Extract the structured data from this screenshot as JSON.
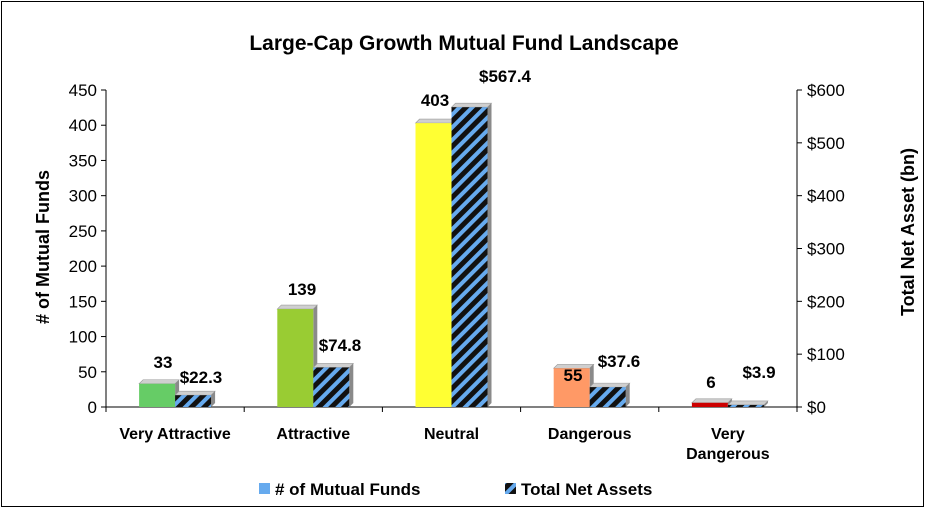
{
  "chart_data": {
    "type": "bar",
    "title": "Large-Cap Growth Mutual Fund Landscape",
    "categories": [
      "Very Attractive",
      "Attractive",
      "Neutral",
      "Dangerous",
      "Very Dangerous"
    ],
    "category_lines": [
      [
        "Very Attractive"
      ],
      [
        "Attractive"
      ],
      [
        "Neutral"
      ],
      [
        "Dangerous"
      ],
      [
        "Very",
        "Dangerous"
      ]
    ],
    "ylabel": "# of Mutual Funds",
    "y2label": "Total Net Asset (bn)",
    "ylim": [
      0,
      450
    ],
    "yticks": [
      0,
      50,
      100,
      150,
      200,
      250,
      300,
      350,
      400,
      450
    ],
    "y2lim": [
      0,
      600
    ],
    "y2ticks": [
      0,
      100,
      200,
      300,
      400,
      500,
      600
    ],
    "y2tick_labels": [
      "$0",
      "$100",
      "$200",
      "$300",
      "$400",
      "$500",
      "$600"
    ],
    "grid": false,
    "legend_position": "bottom",
    "series": [
      {
        "name": "# of Mutual Funds",
        "axis": "left",
        "values": [
          33,
          139,
          403,
          55,
          6
        ],
        "labels": [
          "33",
          "139",
          "403",
          "55",
          "6"
        ],
        "colors": [
          "#66cc66",
          "#99cc33",
          "#ffff33",
          "#ff9966",
          "#cc0000"
        ],
        "legend_color": "#66aaee"
      },
      {
        "name": "Total Net Assets",
        "axis": "right",
        "values": [
          22.3,
          74.8,
          567.4,
          37.6,
          3.9
        ],
        "labels": [
          "$22.3",
          "$74.8",
          "$567.4",
          "$37.6",
          "$3.9"
        ],
        "pattern": "black-blue-stripes",
        "stripe_color": "#66aaee"
      }
    ]
  }
}
